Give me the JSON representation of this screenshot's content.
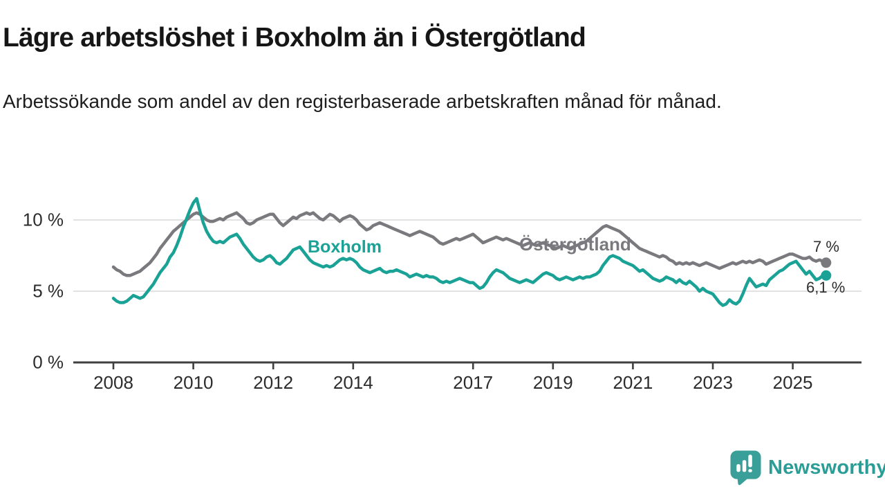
{
  "title": "Lägre arbetslöshet i Boxholm än i Östergötland",
  "subtitle": "Arbetssökande som andel av den registerbaserade arbetskraften månad för månad.",
  "branding": {
    "logo_text": "Newsworthy",
    "logo_bubble_color": "#3a9f99",
    "logo_text_color": "#2a9d96"
  },
  "chart_data": {
    "type": "line",
    "title": "Lägre arbetslöshet i Boxholm än i Östergötland",
    "subtitle": "Arbetssökande som andel av den registerbaserade arbetskraften månad för månad.",
    "x_unit": "month",
    "x_start": "2008-01",
    "x_end": "2025-11",
    "ylabel": "",
    "xlabel": "",
    "ylim": [
      0,
      12
    ],
    "grid": true,
    "legend_position": "inline-labels",
    "x_ticks": [
      {
        "year": 2008,
        "label": "2008"
      },
      {
        "year": 2010,
        "label": "2010"
      },
      {
        "year": 2012,
        "label": "2012"
      },
      {
        "year": 2014,
        "label": "2014"
      },
      {
        "year": 2017,
        "label": "2017"
      },
      {
        "year": 2019,
        "label": "2019"
      },
      {
        "year": 2021,
        "label": "2021"
      },
      {
        "year": 2023,
        "label": "2023"
      },
      {
        "year": 2025,
        "label": "2025"
      }
    ],
    "y_ticks": [
      {
        "value": 10,
        "label": "10 %"
      },
      {
        "value": 5,
        "label": "5 %"
      },
      {
        "value": 0,
        "label": "0 %"
      }
    ],
    "colors": {
      "grid": "#d8d8d8",
      "axis": "#3f3f3f",
      "tick_text": "#2c2c2c"
    },
    "series": [
      {
        "name": "Östergötland",
        "color": "#7a797d",
        "end_label": "7 %",
        "end_value": 7.0,
        "values": [
          6.7,
          6.5,
          6.4,
          6.2,
          6.1,
          6.1,
          6.2,
          6.3,
          6.4,
          6.6,
          6.8,
          7.0,
          7.3,
          7.6,
          8.0,
          8.3,
          8.6,
          8.9,
          9.2,
          9.4,
          9.6,
          9.8,
          10.0,
          10.2,
          10.4,
          10.5,
          10.4,
          10.2,
          10.0,
          9.9,
          9.9,
          10.0,
          10.1,
          10.0,
          10.2,
          10.3,
          10.4,
          10.5,
          10.3,
          10.1,
          9.8,
          9.7,
          9.8,
          10.0,
          10.1,
          10.2,
          10.3,
          10.4,
          10.4,
          10.1,
          9.8,
          9.6,
          9.8,
          10.0,
          10.2,
          10.1,
          10.3,
          10.4,
          10.5,
          10.4,
          10.5,
          10.3,
          10.1,
          10.0,
          10.2,
          10.4,
          10.3,
          10.1,
          9.9,
          10.1,
          10.2,
          10.3,
          10.2,
          10.0,
          9.7,
          9.5,
          9.3,
          9.4,
          9.6,
          9.7,
          9.8,
          9.7,
          9.6,
          9.5,
          9.4,
          9.3,
          9.2,
          9.1,
          9.0,
          8.9,
          9.0,
          9.1,
          9.2,
          9.1,
          9.0,
          8.9,
          8.8,
          8.6,
          8.4,
          8.3,
          8.4,
          8.5,
          8.6,
          8.7,
          8.6,
          8.7,
          8.8,
          8.9,
          9.0,
          8.8,
          8.6,
          8.4,
          8.5,
          8.6,
          8.7,
          8.8,
          8.7,
          8.6,
          8.7,
          8.6,
          8.5,
          8.4,
          8.3,
          8.2,
          8.3,
          8.4,
          8.3,
          8.2,
          8.3,
          8.4,
          8.3,
          8.2,
          8.1,
          8.0,
          8.1,
          8.2,
          8.1,
          8.0,
          8.1,
          8.2,
          8.3,
          8.4,
          8.5,
          8.7,
          8.9,
          9.1,
          9.3,
          9.5,
          9.6,
          9.5,
          9.4,
          9.3,
          9.2,
          9.0,
          8.8,
          8.6,
          8.4,
          8.2,
          8.0,
          7.9,
          7.8,
          7.7,
          7.6,
          7.5,
          7.4,
          7.5,
          7.4,
          7.2,
          7.1,
          6.9,
          7.0,
          6.9,
          7.0,
          6.9,
          7.0,
          6.9,
          6.8,
          6.9,
          7.0,
          6.9,
          6.8,
          6.7,
          6.6,
          6.7,
          6.8,
          6.9,
          7.0,
          6.9,
          7.0,
          7.1,
          7.0,
          7.1,
          7.0,
          7.1,
          7.2,
          7.1,
          6.9,
          7.0,
          7.1,
          7.2,
          7.3,
          7.4,
          7.5,
          7.6,
          7.6,
          7.5,
          7.4,
          7.3,
          7.3,
          7.4,
          7.2,
          7.1,
          7.2,
          7.1,
          7.0
        ]
      },
      {
        "name": "Boxholm",
        "color": "#1aa296",
        "end_label": "6,1 %",
        "end_value": 6.1,
        "values": [
          4.5,
          4.3,
          4.2,
          4.2,
          4.3,
          4.5,
          4.7,
          4.6,
          4.5,
          4.6,
          4.9,
          5.2,
          5.5,
          5.9,
          6.3,
          6.6,
          6.9,
          7.4,
          7.7,
          8.2,
          8.8,
          9.5,
          10.1,
          10.7,
          11.2,
          11.5,
          10.6,
          9.8,
          9.2,
          8.8,
          8.5,
          8.4,
          8.5,
          8.4,
          8.6,
          8.8,
          8.9,
          9.0,
          8.7,
          8.3,
          8.0,
          7.7,
          7.4,
          7.2,
          7.1,
          7.2,
          7.4,
          7.5,
          7.3,
          7.0,
          6.9,
          7.1,
          7.3,
          7.6,
          7.9,
          8.0,
          8.1,
          7.8,
          7.5,
          7.2,
          7.0,
          6.9,
          6.8,
          6.7,
          6.8,
          6.7,
          6.8,
          7.0,
          7.2,
          7.3,
          7.2,
          7.3,
          7.2,
          7.0,
          6.7,
          6.5,
          6.4,
          6.3,
          6.4,
          6.5,
          6.6,
          6.4,
          6.3,
          6.4,
          6.4,
          6.5,
          6.4,
          6.3,
          6.2,
          6.0,
          6.1,
          6.2,
          6.1,
          6.0,
          6.1,
          6.0,
          6.0,
          5.9,
          5.7,
          5.6,
          5.7,
          5.6,
          5.7,
          5.8,
          5.9,
          5.8,
          5.7,
          5.6,
          5.6,
          5.4,
          5.2,
          5.3,
          5.6,
          6.0,
          6.3,
          6.5,
          6.4,
          6.3,
          6.1,
          5.9,
          5.8,
          5.7,
          5.6,
          5.7,
          5.8,
          5.7,
          5.6,
          5.8,
          6.0,
          6.2,
          6.3,
          6.2,
          6.1,
          5.9,
          5.8,
          5.9,
          6.0,
          5.9,
          5.8,
          5.9,
          6.0,
          5.9,
          6.0,
          6.0,
          6.1,
          6.2,
          6.4,
          6.8,
          7.1,
          7.4,
          7.5,
          7.4,
          7.3,
          7.1,
          7.0,
          6.9,
          6.8,
          6.6,
          6.4,
          6.5,
          6.3,
          6.1,
          5.9,
          5.8,
          5.7,
          5.8,
          6.0,
          5.9,
          5.8,
          5.6,
          5.8,
          5.6,
          5.5,
          5.7,
          5.5,
          5.3,
          5.0,
          5.2,
          5.0,
          4.9,
          4.8,
          4.5,
          4.2,
          4.0,
          4.1,
          4.4,
          4.2,
          4.1,
          4.3,
          4.8,
          5.4,
          5.9,
          5.6,
          5.3,
          5.4,
          5.5,
          5.4,
          5.8,
          6.0,
          6.2,
          6.4,
          6.5,
          6.7,
          6.9,
          7.0,
          7.1,
          6.8,
          6.5,
          6.2,
          6.4,
          6.1,
          5.8,
          5.9,
          6.1,
          6.1
        ]
      }
    ]
  }
}
